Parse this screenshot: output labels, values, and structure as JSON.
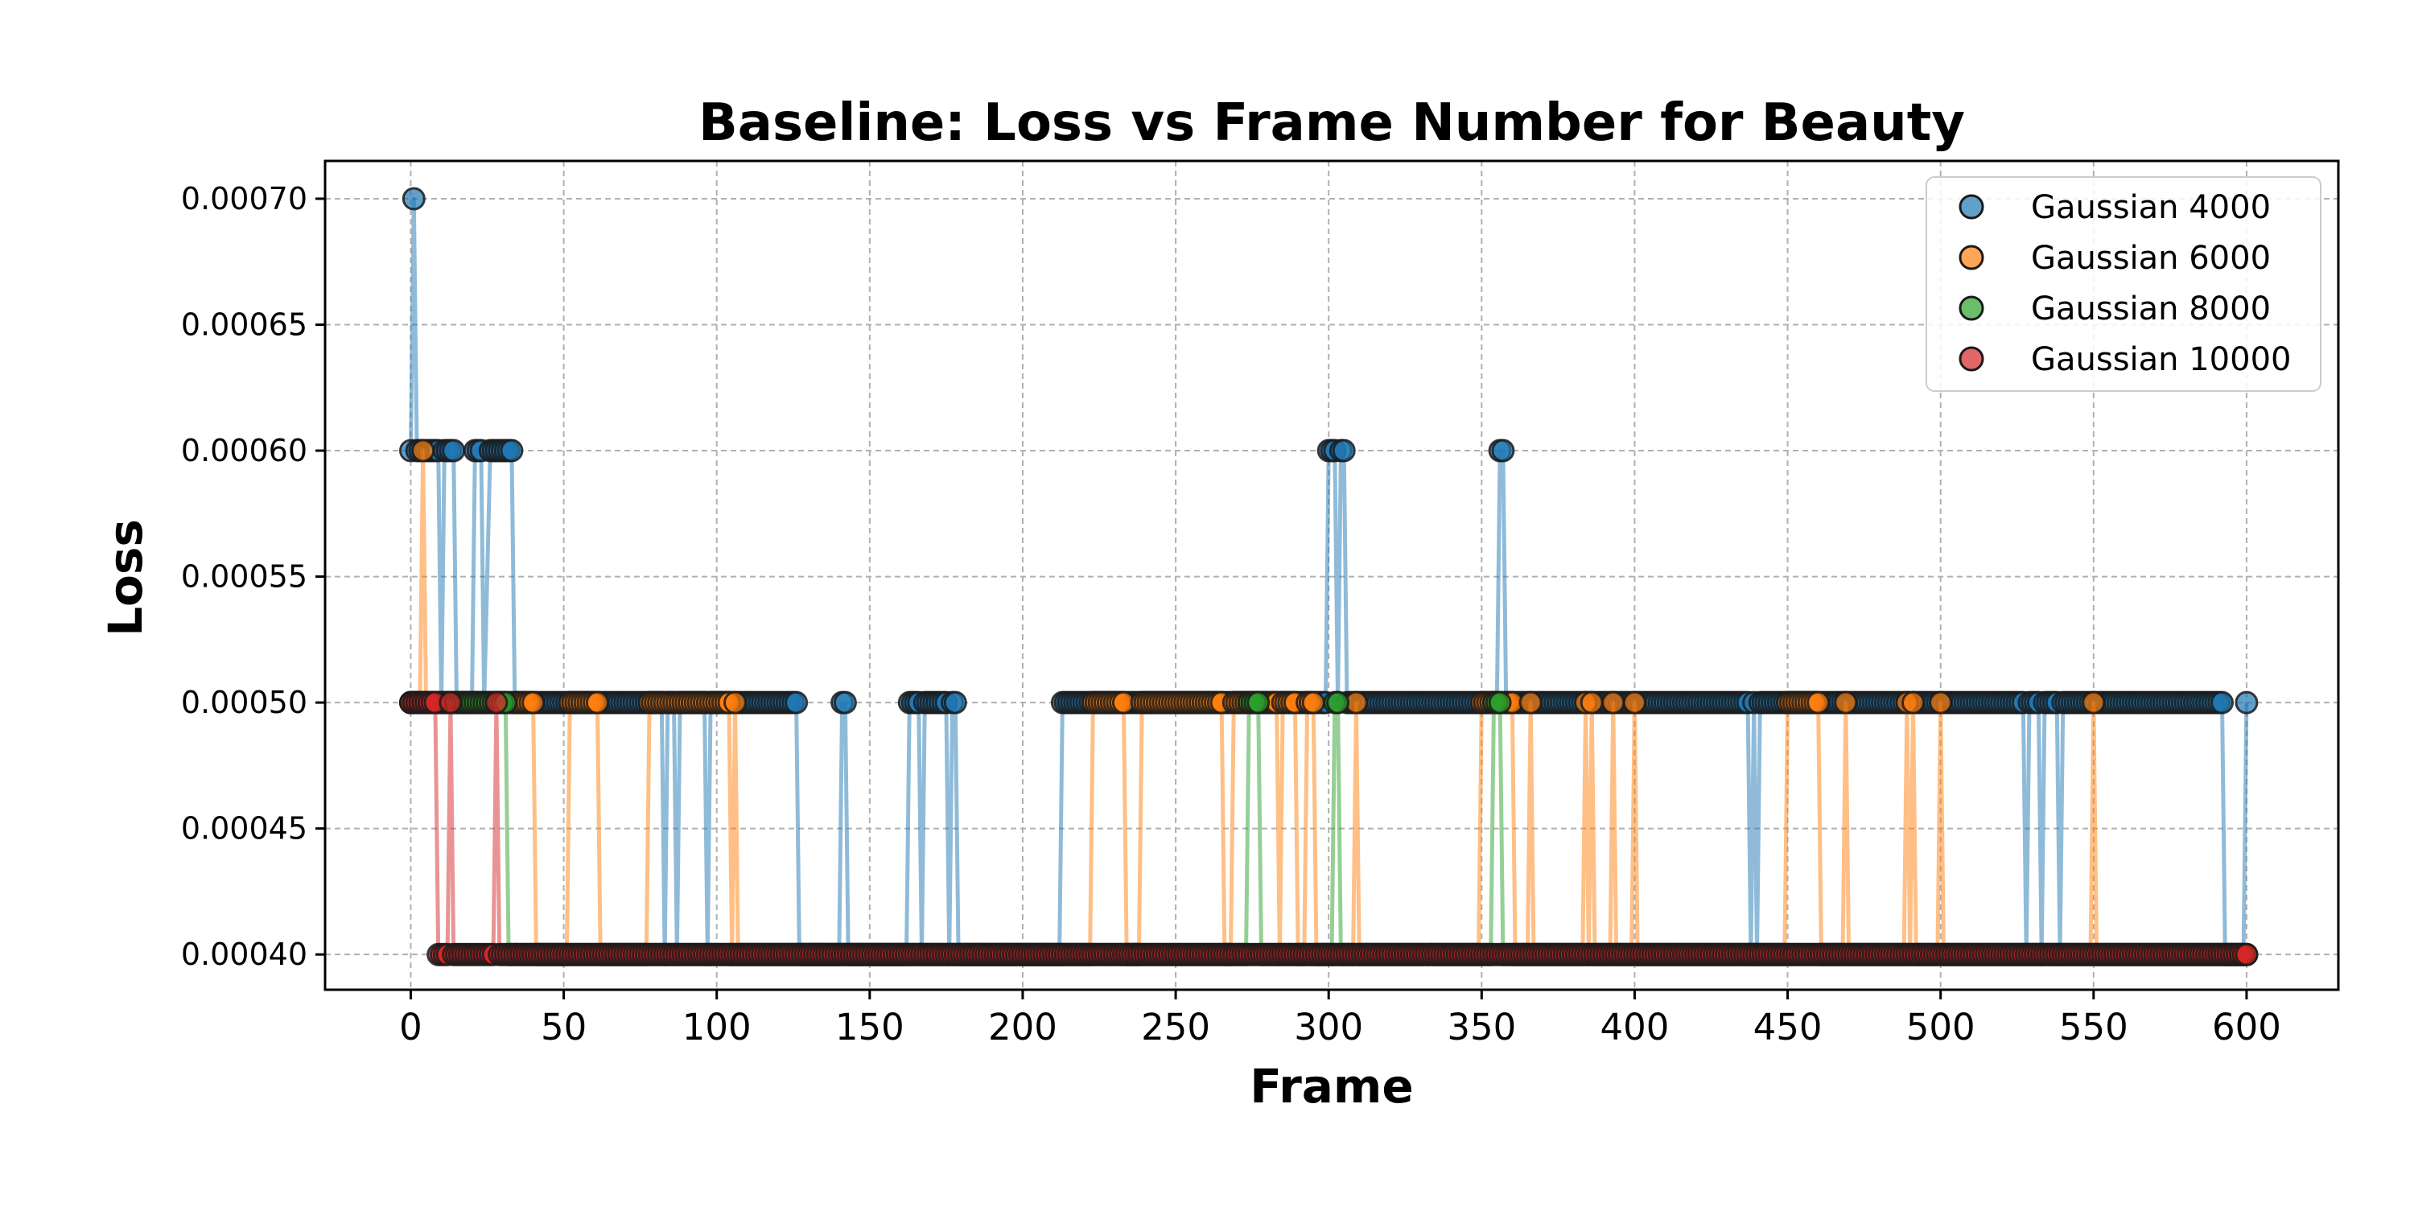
{
  "chart_data": {
    "type": "line",
    "title": "Baseline: Loss vs Frame Number for Beauty",
    "xlabel": "Frame",
    "ylabel": "Loss",
    "xlim": [
      -28,
      630
    ],
    "ylim": [
      0.000386,
      0.000715
    ],
    "xticks": [
      0,
      50,
      100,
      150,
      200,
      250,
      300,
      350,
      400,
      450,
      500,
      550,
      600
    ],
    "yticks": [
      0.0004,
      0.00045,
      0.0005,
      0.00055,
      0.0006,
      0.00065,
      0.0007
    ],
    "ytick_labels": [
      "0.00040",
      "0.00045",
      "0.00050",
      "0.00055",
      "0.00060",
      "0.00065",
      "0.00070"
    ],
    "grid": true,
    "legend_position": "top-right",
    "series": [
      {
        "name": "Gaussian 4000",
        "color": "#1f77b4",
        "segments": [
          [
            0,
            0.0006
          ],
          [
            1,
            0.0007
          ],
          [
            2,
            0.0006
          ],
          [
            9,
            0.0006
          ],
          [
            10,
            0.0005
          ],
          [
            11,
            0.0006
          ],
          [
            14,
            0.0006
          ],
          [
            15,
            0.0005
          ],
          [
            20,
            0.0005
          ],
          [
            21,
            0.0006
          ],
          [
            23,
            0.0006
          ],
          [
            24,
            0.0005
          ],
          [
            26,
            0.0006
          ],
          [
            33,
            0.0006
          ],
          [
            34,
            0.0005
          ],
          [
            82,
            0.0005
          ],
          [
            83,
            0.0004
          ],
          [
            84,
            0.0005
          ],
          [
            86,
            0.0005
          ],
          [
            87,
            0.0004
          ],
          [
            88,
            0.0005
          ],
          [
            96,
            0.0005
          ],
          [
            97,
            0.0004
          ],
          [
            98,
            0.0005
          ],
          [
            126,
            0.0005
          ],
          [
            127,
            0.0004
          ],
          [
            140,
            0.0004
          ],
          [
            141,
            0.0005
          ],
          [
            142,
            0.0005
          ],
          [
            143,
            0.0004
          ],
          [
            162,
            0.0004
          ],
          [
            163,
            0.0005
          ],
          [
            166,
            0.0005
          ],
          [
            167,
            0.0004
          ],
          [
            168,
            0.0005
          ],
          [
            175,
            0.0005
          ],
          [
            176,
            0.0004
          ],
          [
            177,
            0.0005
          ],
          [
            178,
            0.0005
          ],
          [
            179,
            0.0004
          ],
          [
            212,
            0.0004
          ],
          [
            213,
            0.0005
          ],
          [
            299,
            0.0005
          ],
          [
            300,
            0.0006
          ],
          [
            302,
            0.0006
          ],
          [
            303,
            0.0005
          ],
          [
            304,
            0.0006
          ],
          [
            305,
            0.0006
          ],
          [
            306,
            0.0005
          ],
          [
            355,
            0.0005
          ],
          [
            356,
            0.0006
          ],
          [
            357,
            0.0006
          ],
          [
            358,
            0.0005
          ],
          [
            437,
            0.0005
          ],
          [
            438,
            0.0004
          ],
          [
            439,
            0.0005
          ],
          [
            440,
            0.0004
          ],
          [
            441,
            0.0005
          ],
          [
            527,
            0.0005
          ],
          [
            528,
            0.0004
          ],
          [
            529,
            0.0005
          ],
          [
            532,
            0.0005
          ],
          [
            533,
            0.0004
          ],
          [
            534,
            0.0005
          ],
          [
            538,
            0.0005
          ],
          [
            539,
            0.0004
          ],
          [
            540,
            0.0005
          ],
          [
            592,
            0.0005
          ],
          [
            593,
            0.0004
          ],
          [
            599,
            0.0004
          ],
          [
            600,
            0.0005
          ]
        ],
        "markers_at_0_0005": [
          [
            0,
            34
          ],
          [
            82,
            88
          ],
          [
            96,
            126
          ],
          [
            141,
            142
          ],
          [
            163,
            168
          ],
          [
            175,
            178
          ],
          [
            213,
            299
          ],
          [
            303,
            306
          ],
          [
            358,
            437
          ],
          [
            439,
            441
          ],
          [
            529,
            534
          ],
          [
            540,
            592
          ],
          [
            600,
            600
          ]
        ],
        "markers_at_0_0006": [
          0,
          2,
          9,
          11,
          14,
          21,
          23,
          26,
          27,
          28,
          29,
          30,
          31,
          32,
          33,
          300,
          301,
          302,
          304,
          305,
          356,
          357
        ],
        "markers_at_0_0007": [
          1
        ],
        "markers_at_0_0004": [
          [
            83,
            83
          ],
          [
            87,
            87
          ],
          [
            97,
            97
          ],
          [
            127,
            140
          ],
          [
            143,
            162
          ],
          [
            167,
            167
          ],
          [
            176,
            176
          ],
          [
            179,
            212
          ],
          [
            438,
            438
          ],
          [
            440,
            440
          ],
          [
            528,
            528
          ],
          [
            533,
            533
          ],
          [
            539,
            539
          ],
          [
            593,
            599
          ]
        ]
      },
      {
        "name": "Gaussian 6000",
        "color": "#ff7f0e",
        "segments": [
          [
            0,
            0.0005
          ],
          [
            3,
            0.0005
          ],
          [
            4,
            0.0006
          ],
          [
            5,
            0.0005
          ],
          [
            40,
            0.0005
          ],
          [
            41,
            0.0004
          ],
          [
            51,
            0.0004
          ],
          [
            52,
            0.0005
          ],
          [
            61,
            0.0005
          ],
          [
            62,
            0.0004
          ],
          [
            77,
            0.0004
          ],
          [
            78,
            0.0005
          ],
          [
            104,
            0.0005
          ],
          [
            105,
            0.0004
          ],
          [
            106,
            0.0005
          ],
          [
            107,
            0.0004
          ],
          [
            222,
            0.0004
          ],
          [
            223,
            0.0005
          ],
          [
            233,
            0.0005
          ],
          [
            234,
            0.0004
          ],
          [
            238,
            0.0004
          ],
          [
            239,
            0.0005
          ],
          [
            265,
            0.0005
          ],
          [
            266,
            0.0004
          ],
          [
            268,
            0.0004
          ],
          [
            269,
            0.0005
          ],
          [
            283,
            0.0005
          ],
          [
            284,
            0.0004
          ],
          [
            285,
            0.0005
          ],
          [
            289,
            0.0005
          ],
          [
            290,
            0.0004
          ],
          [
            292,
            0.0004
          ],
          [
            293,
            0.0005
          ],
          [
            295,
            0.0005
          ],
          [
            296,
            0.0004
          ],
          [
            308,
            0.0004
          ],
          [
            309,
            0.0005
          ],
          [
            310,
            0.0004
          ],
          [
            349,
            0.0004
          ],
          [
            350,
            0.0005
          ],
          [
            360,
            0.0005
          ],
          [
            361,
            0.0004
          ],
          [
            365,
            0.0004
          ],
          [
            366,
            0.0005
          ],
          [
            367,
            0.0004
          ],
          [
            383,
            0.0004
          ],
          [
            384,
            0.0005
          ],
          [
            385,
            0.0004
          ],
          [
            386,
            0.0005
          ],
          [
            387,
            0.0004
          ],
          [
            392,
            0.0004
          ],
          [
            393,
            0.0005
          ],
          [
            394,
            0.0004
          ],
          [
            399,
            0.0004
          ],
          [
            400,
            0.0005
          ],
          [
            401,
            0.0004
          ],
          [
            449,
            0.0004
          ],
          [
            450,
            0.0005
          ],
          [
            460,
            0.0005
          ],
          [
            461,
            0.0004
          ],
          [
            468,
            0.0004
          ],
          [
            469,
            0.0005
          ],
          [
            470,
            0.0004
          ],
          [
            488,
            0.0004
          ],
          [
            489,
            0.0005
          ],
          [
            490,
            0.0004
          ],
          [
            491,
            0.0005
          ],
          [
            492,
            0.0004
          ],
          [
            499,
            0.0004
          ],
          [
            500,
            0.0005
          ],
          [
            501,
            0.0004
          ],
          [
            549,
            0.0004
          ],
          [
            550,
            0.0005
          ],
          [
            551,
            0.0004
          ],
          [
            600,
            0.0004
          ]
        ]
      },
      {
        "name": "Gaussian 8000",
        "color": "#2ca02c",
        "segments": [
          [
            0,
            0.0005
          ],
          [
            31,
            0.0005
          ],
          [
            32,
            0.0004
          ],
          [
            273,
            0.0004
          ],
          [
            274,
            0.0005
          ],
          [
            277,
            0.0005
          ],
          [
            278,
            0.0004
          ],
          [
            301,
            0.0004
          ],
          [
            302,
            0.0005
          ],
          [
            303,
            0.0005
          ],
          [
            304,
            0.0004
          ],
          [
            353,
            0.0004
          ],
          [
            354,
            0.0005
          ],
          [
            356,
            0.0005
          ],
          [
            357,
            0.0004
          ],
          [
            600,
            0.0004
          ]
        ]
      },
      {
        "name": "Gaussian 10000",
        "color": "#d62728",
        "segments": [
          [
            0,
            0.0005
          ],
          [
            8,
            0.0005
          ],
          [
            9,
            0.0004
          ],
          [
            12,
            0.0004
          ],
          [
            13,
            0.0005
          ],
          [
            14,
            0.0004
          ],
          [
            27,
            0.0004
          ],
          [
            28,
            0.0005
          ],
          [
            29,
            0.0004
          ],
          [
            600,
            0.0004
          ]
        ]
      }
    ]
  }
}
